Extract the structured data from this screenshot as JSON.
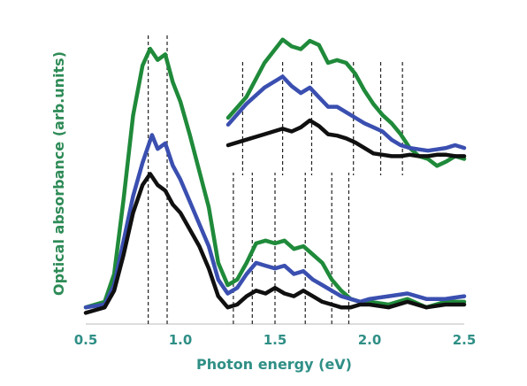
{
  "chart_data": {
    "type": "line",
    "title": "",
    "xlabel": "Photon energy (eV)",
    "ylabel": "Optical absorbance (arb.units)",
    "xlim": [
      0.5,
      2.5
    ],
    "ylim": [
      0,
      1
    ],
    "xticks": [
      "0.5",
      "1.0",
      "1.5",
      "2.0",
      "2.5"
    ],
    "grid": false,
    "legend": "none",
    "colors": {
      "axis_text": "#2f8f86",
      "ylabel_text": "#2e8b57"
    },
    "series": [
      {
        "color": "#1f8a3a",
        "x": [
          0.5,
          0.6,
          0.65,
          0.7,
          0.75,
          0.8,
          0.84,
          0.88,
          0.92,
          0.96,
          1.0,
          1.05,
          1.1,
          1.15,
          1.2,
          1.25,
          1.3,
          1.35,
          1.4,
          1.45,
          1.5,
          1.55,
          1.6,
          1.65,
          1.7,
          1.75,
          1.8,
          1.85,
          1.9,
          1.95,
          2.0,
          2.1,
          2.2,
          2.3,
          2.4,
          2.5
        ],
        "y": [
          0.06,
          0.08,
          0.18,
          0.45,
          0.75,
          0.93,
          0.99,
          0.95,
          0.97,
          0.87,
          0.8,
          0.68,
          0.55,
          0.42,
          0.22,
          0.14,
          0.16,
          0.22,
          0.29,
          0.3,
          0.29,
          0.3,
          0.27,
          0.28,
          0.25,
          0.22,
          0.16,
          0.12,
          0.09,
          0.08,
          0.08,
          0.07,
          0.09,
          0.06,
          0.08,
          0.08
        ]
      },
      {
        "color": "#3a4fb0",
        "x": [
          0.5,
          0.6,
          0.65,
          0.7,
          0.75,
          0.8,
          0.85,
          0.88,
          0.92,
          0.96,
          1.0,
          1.05,
          1.1,
          1.15,
          1.2,
          1.25,
          1.3,
          1.35,
          1.4,
          1.45,
          1.5,
          1.55,
          1.6,
          1.65,
          1.7,
          1.75,
          1.8,
          1.85,
          1.9,
          1.95,
          2.0,
          2.1,
          2.2,
          2.3,
          2.4,
          2.5
        ],
        "y": [
          0.06,
          0.07,
          0.14,
          0.3,
          0.46,
          0.58,
          0.68,
          0.63,
          0.65,
          0.57,
          0.52,
          0.44,
          0.36,
          0.28,
          0.16,
          0.11,
          0.13,
          0.18,
          0.22,
          0.21,
          0.2,
          0.21,
          0.18,
          0.19,
          0.16,
          0.14,
          0.12,
          0.1,
          0.09,
          0.08,
          0.09,
          0.1,
          0.11,
          0.09,
          0.09,
          0.1
        ]
      },
      {
        "color": "#101010",
        "x": [
          0.5,
          0.6,
          0.65,
          0.7,
          0.75,
          0.8,
          0.84,
          0.88,
          0.92,
          0.96,
          1.0,
          1.05,
          1.1,
          1.15,
          1.2,
          1.25,
          1.3,
          1.35,
          1.4,
          1.45,
          1.5,
          1.55,
          1.6,
          1.65,
          1.7,
          1.75,
          1.8,
          1.85,
          1.9,
          1.95,
          2.0,
          2.1,
          2.2,
          2.3,
          2.4,
          2.5
        ],
        "y": [
          0.04,
          0.06,
          0.12,
          0.25,
          0.4,
          0.5,
          0.54,
          0.5,
          0.48,
          0.43,
          0.4,
          0.34,
          0.28,
          0.2,
          0.1,
          0.06,
          0.07,
          0.1,
          0.12,
          0.11,
          0.13,
          0.11,
          0.1,
          0.12,
          0.1,
          0.08,
          0.07,
          0.06,
          0.06,
          0.07,
          0.07,
          0.06,
          0.08,
          0.06,
          0.07,
          0.07
        ]
      }
    ],
    "vlines": [
      0.83,
      0.93,
      1.28,
      1.38,
      1.5,
      1.66,
      1.8,
      1.89
    ],
    "inset": {
      "xlim": [
        1.2,
        2.5
      ],
      "ylim": [
        0,
        1
      ],
      "series": [
        {
          "color": "#1f8a3a",
          "x": [
            1.2,
            1.3,
            1.4,
            1.5,
            1.55,
            1.6,
            1.65,
            1.7,
            1.75,
            1.8,
            1.85,
            1.9,
            1.95,
            2.0,
            2.05,
            2.1,
            2.15,
            2.2,
            2.25,
            2.3,
            2.35,
            2.4,
            2.45,
            2.5
          ],
          "y": [
            0.4,
            0.55,
            0.8,
            0.97,
            0.92,
            0.9,
            0.96,
            0.93,
            0.8,
            0.82,
            0.8,
            0.72,
            0.6,
            0.5,
            0.42,
            0.36,
            0.28,
            0.18,
            0.12,
            0.1,
            0.05,
            0.08,
            0.12,
            0.1
          ]
        },
        {
          "color": "#3a4fb0",
          "x": [
            1.2,
            1.3,
            1.4,
            1.5,
            1.55,
            1.6,
            1.65,
            1.7,
            1.75,
            1.8,
            1.85,
            1.9,
            1.95,
            2.0,
            2.05,
            2.1,
            2.15,
            2.2,
            2.25,
            2.3,
            2.35,
            2.4,
            2.45,
            2.5
          ],
          "y": [
            0.35,
            0.5,
            0.62,
            0.7,
            0.63,
            0.58,
            0.62,
            0.55,
            0.48,
            0.48,
            0.44,
            0.4,
            0.36,
            0.33,
            0.3,
            0.24,
            0.2,
            0.18,
            0.17,
            0.16,
            0.17,
            0.18,
            0.2,
            0.18
          ]
        },
        {
          "color": "#101010",
          "x": [
            1.2,
            1.3,
            1.4,
            1.5,
            1.55,
            1.6,
            1.65,
            1.7,
            1.75,
            1.8,
            1.85,
            1.9,
            1.95,
            2.0,
            2.05,
            2.1,
            2.15,
            2.2,
            2.25,
            2.3,
            2.35,
            2.4,
            2.45,
            2.5
          ],
          "y": [
            0.2,
            0.24,
            0.28,
            0.32,
            0.3,
            0.33,
            0.38,
            0.34,
            0.28,
            0.27,
            0.25,
            0.22,
            0.18,
            0.14,
            0.13,
            0.12,
            0.12,
            0.13,
            0.12,
            0.12,
            0.13,
            0.13,
            0.12,
            0.12
          ]
        }
      ],
      "vlines": [
        1.28,
        1.5,
        1.66,
        1.89,
        2.04,
        2.16
      ]
    }
  }
}
